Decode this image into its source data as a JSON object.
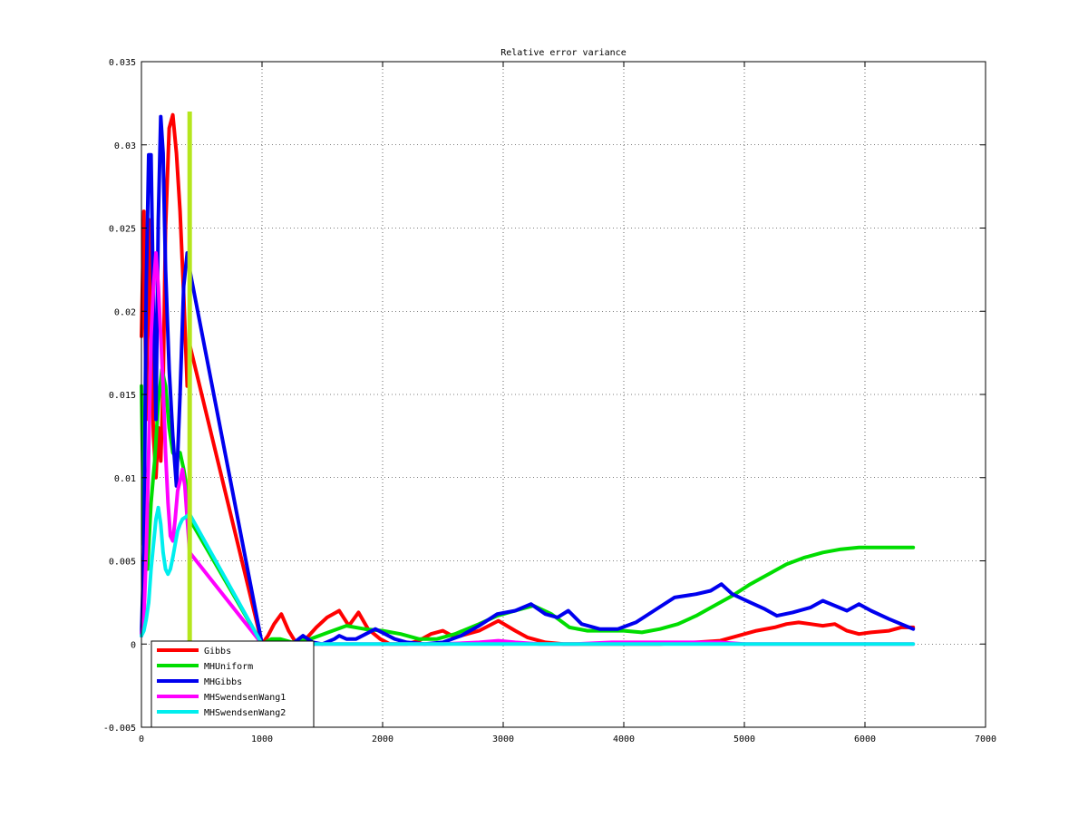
{
  "chart_data": {
    "type": "line",
    "title": "Relative error variance",
    "xlabel": "",
    "ylabel": "",
    "xlim": [
      0,
      7000
    ],
    "ylim": [
      -0.005,
      0.035
    ],
    "xticks": [
      0,
      1000,
      2000,
      3000,
      4000,
      5000,
      6000,
      7000
    ],
    "xtick_labels": [
      "0",
      "1000",
      "2000",
      "3000",
      "4000",
      "5000",
      "6000",
      "7000"
    ],
    "yticks": [
      -0.005,
      0,
      0.005,
      0.01,
      0.015,
      0.02,
      0.025,
      0.03,
      0.035
    ],
    "ytick_labels": [
      "-0.005",
      "0",
      "0.005",
      "0.01",
      "0.015",
      "0.02",
      "0.025",
      "0.03",
      "0.035"
    ],
    "grid": true,
    "legend_position": "bottom-left",
    "marker_line": {
      "x": 400,
      "y0": 0,
      "y1": 0.032,
      "color": "#b5e61d"
    },
    "series": [
      {
        "name": "Gibbs",
        "color": "#ff0000",
        "points": [
          [
            0,
            0.0185
          ],
          [
            20,
            0.026
          ],
          [
            40,
            0.0135
          ],
          [
            60,
            0.0255
          ],
          [
            80,
            0.018
          ],
          [
            100,
            0.0125
          ],
          [
            120,
            0.01
          ],
          [
            140,
            0.013
          ],
          [
            160,
            0.011
          ],
          [
            180,
            0.0155
          ],
          [
            200,
            0.025
          ],
          [
            230,
            0.031
          ],
          [
            260,
            0.0318
          ],
          [
            290,
            0.0295
          ],
          [
            320,
            0.026
          ],
          [
            350,
            0.021
          ],
          [
            380,
            0.0155
          ],
          [
            400,
            0.018
          ],
          [
            1000,
            0
          ],
          [
            1050,
            0.0005
          ],
          [
            1100,
            0.0012
          ],
          [
            1160,
            0.0018
          ],
          [
            1220,
            0.0008
          ],
          [
            1280,
            0.0001
          ],
          [
            1350,
            0.0002
          ],
          [
            1450,
            0.001
          ],
          [
            1540,
            0.0016
          ],
          [
            1640,
            0.002
          ],
          [
            1720,
            0.0011
          ],
          [
            1800,
            0.0019
          ],
          [
            1880,
            0.0009
          ],
          [
            1980,
            0.0003
          ],
          [
            2060,
            0
          ],
          [
            2200,
            0
          ],
          [
            2300,
            0.0002
          ],
          [
            2400,
            0.0006
          ],
          [
            2500,
            0.0008
          ],
          [
            2600,
            0.0004
          ],
          [
            2700,
            0.0006
          ],
          [
            2800,
            0.0008
          ],
          [
            2960,
            0.0014
          ],
          [
            3100,
            0.0008
          ],
          [
            3200,
            0.0004
          ],
          [
            3350,
            0.0001
          ],
          [
            3500,
            0
          ],
          [
            3700,
            0
          ],
          [
            4000,
            0
          ],
          [
            4300,
            0
          ],
          [
            4600,
            0.0001
          ],
          [
            4800,
            0.0002
          ],
          [
            4950,
            0.0005
          ],
          [
            5100,
            0.0008
          ],
          [
            5250,
            0.001
          ],
          [
            5350,
            0.0012
          ],
          [
            5450,
            0.0013
          ],
          [
            5550,
            0.0012
          ],
          [
            5650,
            0.0011
          ],
          [
            5750,
            0.0012
          ],
          [
            5850,
            0.0008
          ],
          [
            5950,
            0.0006
          ],
          [
            6050,
            0.0007
          ],
          [
            6200,
            0.0008
          ],
          [
            6300,
            0.001
          ],
          [
            6400,
            0.001
          ]
        ]
      },
      {
        "name": "MHUniform",
        "color": "#00dd00",
        "points": [
          [
            0,
            0.0155
          ],
          [
            20,
            0.006
          ],
          [
            50,
            0.0045
          ],
          [
            80,
            0.0085
          ],
          [
            110,
            0.011
          ],
          [
            140,
            0.0145
          ],
          [
            170,
            0.0165
          ],
          [
            200,
            0.0155
          ],
          [
            230,
            0.013
          ],
          [
            260,
            0.0115
          ],
          [
            290,
            0.0112
          ],
          [
            320,
            0.0115
          ],
          [
            350,
            0.0105
          ],
          [
            380,
            0.0092
          ],
          [
            400,
            0.0075
          ],
          [
            1000,
            0
          ],
          [
            1080,
            0.0003
          ],
          [
            1150,
            0.0003
          ],
          [
            1250,
            0.0001
          ],
          [
            1400,
            0.0003
          ],
          [
            1550,
            0.0007
          ],
          [
            1700,
            0.0011
          ],
          [
            1850,
            0.0009
          ],
          [
            2000,
            0.0008
          ],
          [
            2150,
            0.0006
          ],
          [
            2300,
            0.0003
          ],
          [
            2450,
            0.0003
          ],
          [
            2600,
            0.0006
          ],
          [
            2800,
            0.0012
          ],
          [
            2950,
            0.0017
          ],
          [
            3100,
            0.002
          ],
          [
            3250,
            0.0023
          ],
          [
            3400,
            0.0018
          ],
          [
            3550,
            0.001
          ],
          [
            3700,
            0.0008
          ],
          [
            3850,
            0.0008
          ],
          [
            4000,
            0.0008
          ],
          [
            4150,
            0.0007
          ],
          [
            4300,
            0.0009
          ],
          [
            4450,
            0.0012
          ],
          [
            4600,
            0.0017
          ],
          [
            4750,
            0.0023
          ],
          [
            4900,
            0.0029
          ],
          [
            5050,
            0.0036
          ],
          [
            5200,
            0.0042
          ],
          [
            5350,
            0.0048
          ],
          [
            5500,
            0.0052
          ],
          [
            5650,
            0.0055
          ],
          [
            5800,
            0.0057
          ],
          [
            5950,
            0.0058
          ],
          [
            6100,
            0.0058
          ],
          [
            6250,
            0.0058
          ],
          [
            6400,
            0.0058
          ]
        ]
      },
      {
        "name": "MHGibbs",
        "color": "#0000ee",
        "points": [
          [
            0,
            0.0005
          ],
          [
            20,
            0.0055
          ],
          [
            40,
            0.0215
          ],
          [
            60,
            0.0294
          ],
          [
            80,
            0.0294
          ],
          [
            100,
            0.02
          ],
          [
            120,
            0.0135
          ],
          [
            140,
            0.0255
          ],
          [
            160,
            0.0317
          ],
          [
            180,
            0.0295
          ],
          [
            200,
            0.0225
          ],
          [
            230,
            0.0165
          ],
          [
            260,
            0.0125
          ],
          [
            290,
            0.0095
          ],
          [
            320,
            0.015
          ],
          [
            350,
            0.0215
          ],
          [
            380,
            0.0235
          ],
          [
            400,
            0.0225
          ],
          [
            1000,
            0
          ],
          [
            1150,
            0
          ],
          [
            1250,
            0
          ],
          [
            1340,
            0.0005
          ],
          [
            1420,
            0.0001
          ],
          [
            1500,
            0
          ],
          [
            1600,
            0.0003
          ],
          [
            1640,
            0.0005
          ],
          [
            1700,
            0.0003
          ],
          [
            1780,
            0.0003
          ],
          [
            1860,
            0.0006
          ],
          [
            1940,
            0.0009
          ],
          [
            2020,
            0.0006
          ],
          [
            2100,
            0.0003
          ],
          [
            2200,
            0.0001
          ],
          [
            2350,
            0
          ],
          [
            2500,
            0.0001
          ],
          [
            2650,
            0.0005
          ],
          [
            2800,
            0.0011
          ],
          [
            2950,
            0.0018
          ],
          [
            3100,
            0.002
          ],
          [
            3230,
            0.0024
          ],
          [
            3350,
            0.0018
          ],
          [
            3450,
            0.0016
          ],
          [
            3540,
            0.002
          ],
          [
            3650,
            0.0012
          ],
          [
            3800,
            0.0009
          ],
          [
            3950,
            0.0009
          ],
          [
            4100,
            0.0013
          ],
          [
            4250,
            0.002
          ],
          [
            4420,
            0.0028
          ],
          [
            4600,
            0.003
          ],
          [
            4720,
            0.0032
          ],
          [
            4810,
            0.0036
          ],
          [
            4900,
            0.003
          ],
          [
            5050,
            0.0025
          ],
          [
            5170,
            0.0021
          ],
          [
            5270,
            0.0017
          ],
          [
            5400,
            0.0019
          ],
          [
            5550,
            0.0022
          ],
          [
            5650,
            0.0026
          ],
          [
            5750,
            0.0023
          ],
          [
            5850,
            0.002
          ],
          [
            5950,
            0.0024
          ],
          [
            6050,
            0.002
          ],
          [
            6200,
            0.0015
          ],
          [
            6300,
            0.0012
          ],
          [
            6400,
            0.0009
          ]
        ]
      },
      {
        "name": "MHSwendsenWang1",
        "color": "#ff00ff",
        "points": [
          [
            0,
            0.0005
          ],
          [
            20,
            0.0015
          ],
          [
            40,
            0.0055
          ],
          [
            60,
            0.0115
          ],
          [
            80,
            0.0185
          ],
          [
            100,
            0.0215
          ],
          [
            120,
            0.0235
          ],
          [
            140,
            0.0215
          ],
          [
            160,
            0.0185
          ],
          [
            180,
            0.0155
          ],
          [
            200,
            0.0115
          ],
          [
            220,
            0.0085
          ],
          [
            240,
            0.0065
          ],
          [
            260,
            0.0062
          ],
          [
            280,
            0.0075
          ],
          [
            300,
            0.0092
          ],
          [
            320,
            0.0098
          ],
          [
            340,
            0.0105
          ],
          [
            360,
            0.0095
          ],
          [
            380,
            0.0075
          ],
          [
            400,
            0.0055
          ],
          [
            1000,
            0
          ],
          [
            1500,
            0
          ],
          [
            2000,
            0
          ],
          [
            2500,
            0
          ],
          [
            2800,
            0.0001
          ],
          [
            2960,
            0.0002
          ],
          [
            3100,
            0.0001
          ],
          [
            3300,
            0
          ],
          [
            3600,
            0
          ],
          [
            3900,
            0.0001
          ],
          [
            4200,
            0.0001
          ],
          [
            4500,
            0.0001
          ],
          [
            4800,
            0.0001
          ],
          [
            5000,
            0
          ],
          [
            5500,
            0
          ],
          [
            6000,
            0
          ],
          [
            6400,
            0
          ]
        ]
      },
      {
        "name": "MHSwendsenWang2",
        "color": "#00eeee",
        "points": [
          [
            0,
            0.0005
          ],
          [
            20,
            0.0008
          ],
          [
            40,
            0.0015
          ],
          [
            60,
            0.0025
          ],
          [
            80,
            0.0045
          ],
          [
            100,
            0.006
          ],
          [
            120,
            0.0075
          ],
          [
            140,
            0.0082
          ],
          [
            160,
            0.0072
          ],
          [
            180,
            0.0055
          ],
          [
            200,
            0.0045
          ],
          [
            220,
            0.0042
          ],
          [
            240,
            0.0045
          ],
          [
            260,
            0.0052
          ],
          [
            280,
            0.006
          ],
          [
            300,
            0.0068
          ],
          [
            320,
            0.0072
          ],
          [
            340,
            0.0075
          ],
          [
            360,
            0.0076
          ],
          [
            380,
            0.0077
          ],
          [
            400,
            0.0078
          ],
          [
            1000,
            0
          ],
          [
            1500,
            0
          ],
          [
            2000,
            0
          ],
          [
            2500,
            0
          ],
          [
            3000,
            0
          ],
          [
            3500,
            0
          ],
          [
            4000,
            0
          ],
          [
            4500,
            0
          ],
          [
            5000,
            0
          ],
          [
            5500,
            0
          ],
          [
            6000,
            0
          ],
          [
            6400,
            0
          ]
        ]
      }
    ]
  }
}
